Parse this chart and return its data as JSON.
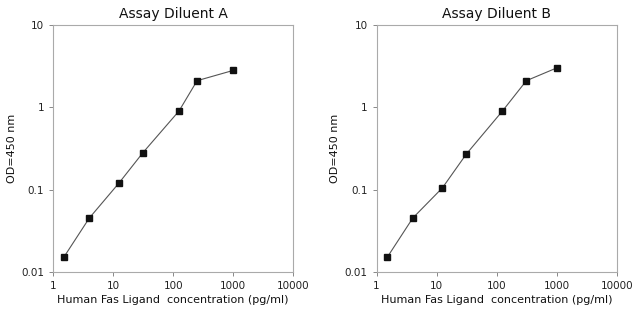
{
  "panel_A": {
    "title": "Assay Diluent A",
    "x": [
      1.5,
      4.0,
      12.5,
      31.25,
      125,
      250,
      1000
    ],
    "y": [
      0.015,
      0.045,
      0.12,
      0.28,
      0.9,
      2.1,
      2.8
    ]
  },
  "panel_B": {
    "title": "Assay Diluent B",
    "x": [
      1.5,
      4.0,
      12.5,
      31.25,
      125,
      312.5,
      1000
    ],
    "y": [
      0.015,
      0.045,
      0.105,
      0.27,
      0.9,
      2.1,
      3.0
    ]
  },
  "xlabel": "Human Fas Ligand  concentration (pg/ml)",
  "ylabel": "OD=450 nm",
  "xlim": [
    1,
    10000
  ],
  "ylim": [
    0.01,
    10
  ],
  "line_color": "#555555",
  "marker": "s",
  "marker_color": "#111111",
  "marker_size": 4,
  "bg_color": "#ffffff",
  "title_fontsize": 10,
  "label_fontsize": 8,
  "tick_fontsize": 7.5
}
